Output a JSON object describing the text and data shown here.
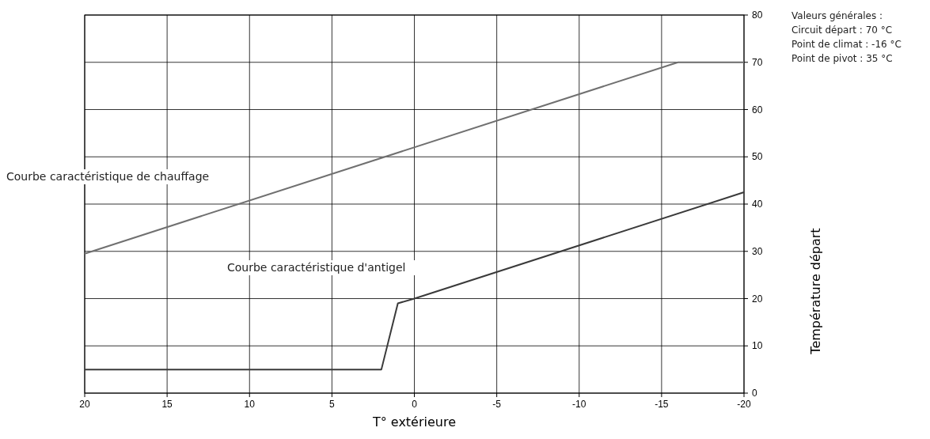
{
  "chart_data": {
    "type": "line",
    "xlabel": "T° extérieure",
    "ylabel": "Température départ",
    "xlim": [
      20,
      -20
    ],
    "xticks": [
      20,
      15,
      10,
      5,
      0,
      -5,
      -10,
      -15,
      -20
    ],
    "ylim": [
      0,
      80
    ],
    "yticks": [
      0,
      10,
      20,
      30,
      40,
      50,
      60,
      70,
      80
    ],
    "grid": true,
    "marker": "none",
    "line_style": "solid",
    "series": [
      {
        "name": "Courbe caractéristique de chauffage",
        "color": "#707070",
        "x": [
          20,
          -16,
          -20
        ],
        "values": [
          29.5,
          70,
          70
        ]
      },
      {
        "name": "Courbe caractéristique d'antigel",
        "color": "#3a3a3a",
        "x": [
          20,
          2,
          1,
          0,
          -20
        ],
        "values": [
          5,
          5,
          19,
          20,
          42.5
        ]
      }
    ],
    "annotations": [
      "Valeurs générales :",
      "Circuit départ : 70 °C",
      "Point de climat : -16 °C",
      "Point de pivot : 35 °C"
    ]
  }
}
